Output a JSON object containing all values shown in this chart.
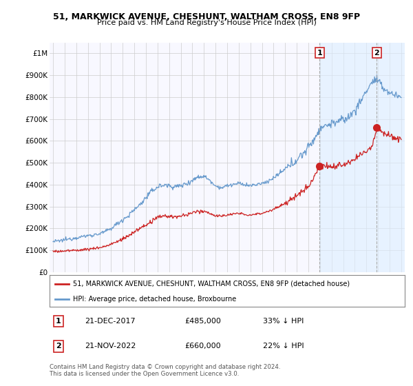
{
  "title": "51, MARKWICK AVENUE, CHESHUNT, WALTHAM CROSS, EN8 9FP",
  "subtitle": "Price paid vs. HM Land Registry's House Price Index (HPI)",
  "ylabel_ticks": [
    "£0",
    "£100K",
    "£200K",
    "£300K",
    "£400K",
    "£500K",
    "£600K",
    "£700K",
    "£800K",
    "£900K",
    "£1M"
  ],
  "ytick_values": [
    0,
    100000,
    200000,
    300000,
    400000,
    500000,
    600000,
    700000,
    800000,
    900000,
    1000000
  ],
  "xlim": [
    1994.7,
    2025.3
  ],
  "ylim": [
    0,
    1050000
  ],
  "hpi_color": "#6699cc",
  "price_color": "#cc2222",
  "vline_color": "#aaaaaa",
  "shade_color": "#ddeeff",
  "purchase1_year": 2017.97,
  "purchase1_price": 485000,
  "purchase2_year": 2022.89,
  "purchase2_price": 660000,
  "legend_line1": "51, MARKWICK AVENUE, CHESHUNT, WALTHAM CROSS, EN8 9FP (detached house)",
  "legend_line2": "HPI: Average price, detached house, Broxbourne",
  "footnote": "Contains HM Land Registry data © Crown copyright and database right 2024.\nThis data is licensed under the Open Government Licence v3.0.",
  "bg_color": "#ffffff",
  "plot_bg_color": "#f8f8ff",
  "grid_color": "#cccccc",
  "box_edge_color": "#cc2222"
}
